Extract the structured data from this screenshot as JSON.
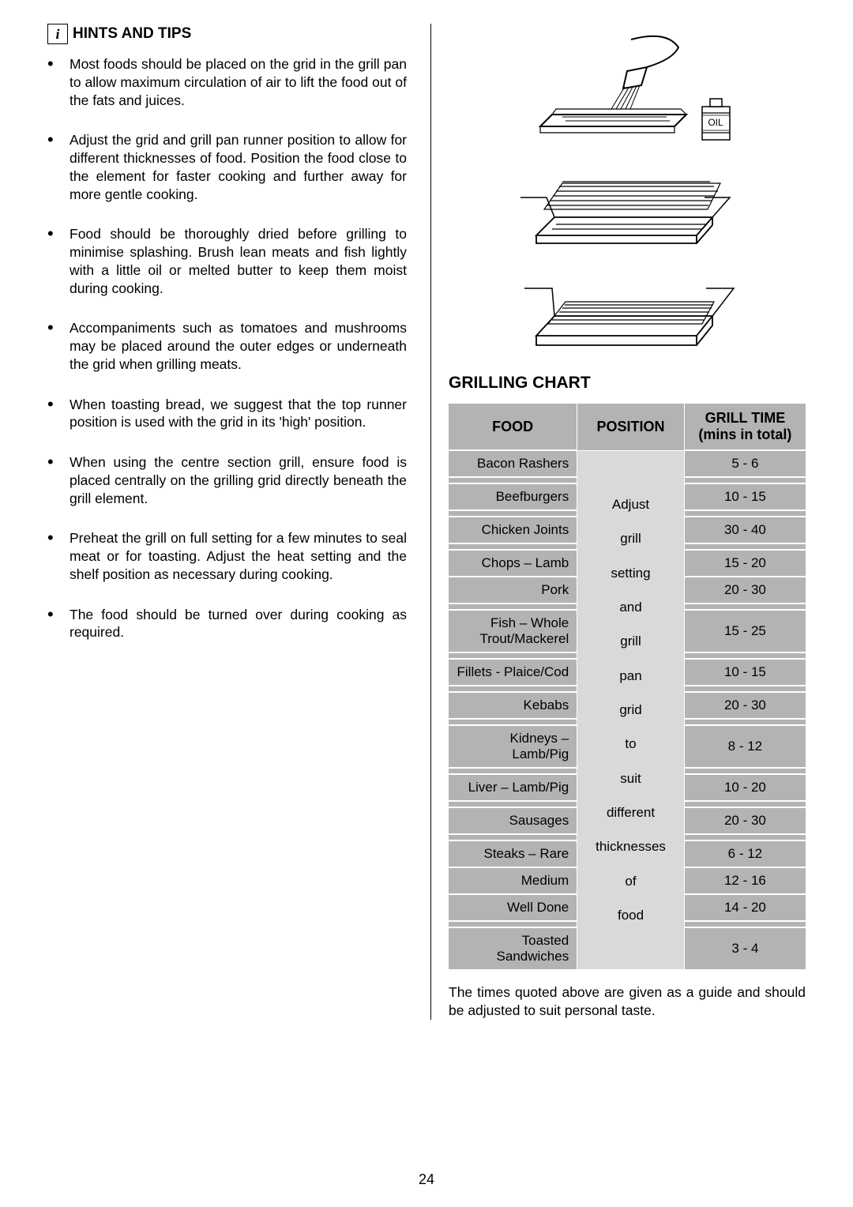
{
  "info_icon_glyph": "i",
  "heading": "HINTS AND TIPS",
  "bullets": [
    "Most foods should be placed on the grid in the grill pan to allow maximum circulation of air to lift the food out of the fats and juices.",
    "Adjust the grid and grill pan runner position to allow for different thicknesses of food.  Position the food close to the element for faster cooking and further away for more gentle cooking.",
    "Food should be thoroughly dried before grilling to minimise splashing.  Brush lean meats and fish lightly with a little oil or melted butter to keep them moist during cooking.",
    "Accompaniments such as tomatoes and mushrooms may be placed around the outer edges or underneath the grid when grilling meats.",
    "When toasting bread, we suggest that the top runner position is used with the grid in its 'high' position.",
    "When using the centre section grill, ensure food is placed centrally on the grilling grid directly beneath the grill element.",
    "Preheat the grill on full setting for a few minutes to seal meat or for toasting.  Adjust the heat setting and the shelf position as necessary during cooking.",
    "The food should be turned over during cooking as required."
  ],
  "oil_label": "OIL",
  "chart_title": "GRILLING CHART",
  "table_headers": {
    "food": "FOOD",
    "position": "POSITION",
    "time": "GRILL TIME (mins in total)"
  },
  "position_lines": [
    "Adjust",
    "grill",
    "setting",
    "and",
    "grill",
    "pan",
    "grid",
    "to",
    "suit",
    "different",
    "thicknesses",
    "of",
    "food"
  ],
  "rows": [
    {
      "food": "Bacon Rashers",
      "time": "5 - 6"
    },
    {
      "food": "Beefburgers",
      "time": "10 - 15"
    },
    {
      "food": "Chicken Joints",
      "time": "30 - 40"
    },
    {
      "food": "Chops – Lamb",
      "time": "15 - 20",
      "no_spacer_after": true
    },
    {
      "food": "Pork",
      "time": "20 - 30"
    },
    {
      "food": "Fish – Whole Trout/Mackerel",
      "time": "15 - 25"
    },
    {
      "food": "Fillets - Plaice/Cod",
      "time": "10 - 15"
    },
    {
      "food": "Kebabs",
      "time": "20 - 30"
    },
    {
      "food": "Kidneys – Lamb/Pig",
      "time": "8 - 12"
    },
    {
      "food": "Liver – Lamb/Pig",
      "time": "10 - 20"
    },
    {
      "food": "Sausages",
      "time": "20 - 30"
    },
    {
      "food": "Steaks – Rare",
      "time": "6 - 12",
      "no_spacer_after": true
    },
    {
      "food": "Medium",
      "time": "12 - 16",
      "no_spacer_after": true
    },
    {
      "food": "Well Done",
      "time": "14 - 20"
    },
    {
      "food": "Toasted Sandwiches",
      "time": "3 - 4"
    }
  ],
  "note": "The times quoted above are given as a guide and should be adjusted to suit personal taste.",
  "page_number": "24",
  "colors": {
    "th_bg": "#b3b3b3",
    "food_bg": "#b3b3b3",
    "pos_bg": "#d9d9d9",
    "border": "#ffffff"
  }
}
